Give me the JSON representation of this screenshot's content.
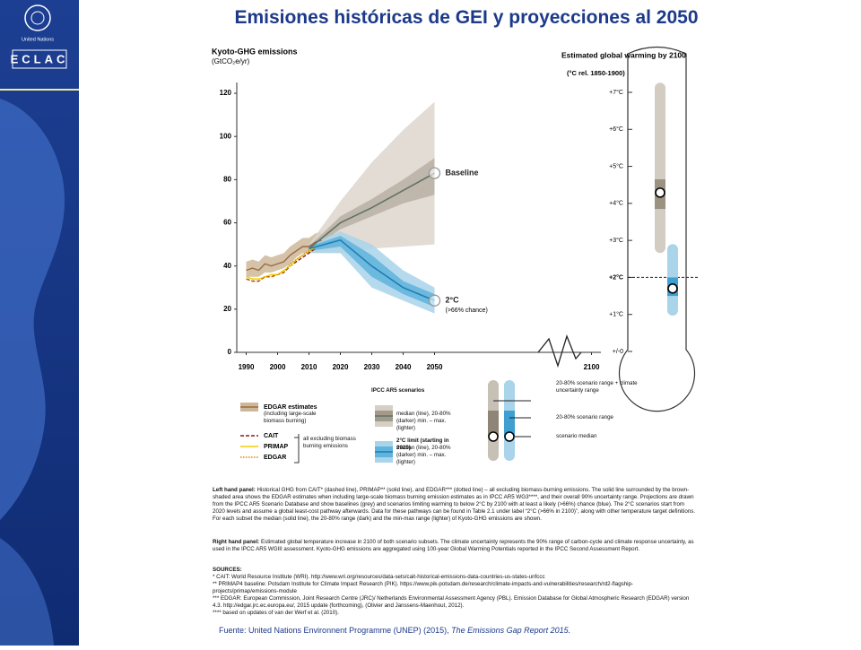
{
  "sidebar": {
    "org": "United Nations",
    "logo": "ECLAC"
  },
  "title": "Emisiones históricas de GEI y proyecciones al 2050",
  "chart_data": [
    {
      "type": "line",
      "title": "Kyoto-GHG emissions",
      "subtitle": "(GtCO₂e/yr)",
      "xlim": [
        1987,
        2103
      ],
      "xticks": [
        1990,
        2000,
        2010,
        2020,
        2030,
        2040,
        2050,
        2100
      ],
      "ylim": [
        0,
        125
      ],
      "yticks": [
        0,
        20,
        40,
        60,
        80,
        100,
        120
      ],
      "bands": [
        {
          "color": "#cdb79a",
          "x": [
            1990,
            1992,
            1994,
            1996,
            1998,
            2000,
            2002,
            2004,
            2006,
            2008,
            2010,
            2012,
            2014
          ],
          "low": [
            35,
            35,
            35,
            37,
            37,
            38,
            39,
            41,
            44,
            46,
            46,
            48,
            49
          ],
          "high": [
            42,
            43,
            42,
            45,
            44,
            45,
            46,
            49,
            51,
            53,
            53,
            55,
            56
          ]
        },
        {
          "color": "#ddd6cc",
          "x": [
            2010,
            2020,
            2030,
            2040,
            2050
          ],
          "low": [
            46,
            46,
            48,
            49,
            50
          ],
          "high": [
            50,
            70,
            88,
            103,
            116
          ]
        },
        {
          "color": "#b9b0a3",
          "x": [
            2010,
            2020,
            2030,
            2040,
            2050
          ],
          "low": [
            47,
            57,
            63,
            69,
            73
          ],
          "high": [
            49,
            63,
            71,
            80,
            90
          ]
        },
        {
          "color": "#a9d4ea",
          "x": [
            2010,
            2020,
            2030,
            2040,
            2050
          ],
          "low": [
            46,
            46,
            30,
            24,
            18
          ],
          "high": [
            50,
            56,
            50,
            38,
            30
          ]
        },
        {
          "color": "#5fb3dc",
          "x": [
            2010,
            2020,
            2030,
            2040,
            2050
          ],
          "low": [
            47,
            49,
            35,
            27,
            21
          ],
          "high": [
            49,
            54,
            45,
            33,
            27
          ]
        }
      ],
      "series": [
        {
          "name": "EDGAR estimates",
          "color": "#9c6b3f",
          "style": "solid",
          "x": [
            1990,
            1992,
            1994,
            1996,
            1998,
            2000,
            2002,
            2004,
            2006,
            2008,
            2010,
            2012,
            2014
          ],
          "values": [
            38,
            39,
            38,
            41,
            40,
            41,
            42,
            45,
            47,
            49,
            49,
            51,
            52
          ]
        },
        {
          "name": "CAIT",
          "color": "#8b1a1a",
          "style": "dashed",
          "x": [
            1990,
            1992,
            1994,
            1996,
            1998,
            2000,
            2002,
            2004,
            2006,
            2008,
            2010,
            2012
          ],
          "values": [
            34,
            33,
            33,
            35,
            35,
            36,
            37,
            40,
            42,
            44,
            46,
            48
          ]
        },
        {
          "name": "PRIMAP",
          "color": "#f0d000",
          "style": "solid",
          "x": [
            1990,
            1992,
            1994,
            1996,
            1998,
            2000,
            2002,
            2004,
            2006,
            2008,
            2010,
            2012
          ],
          "values": [
            35,
            34,
            34,
            35,
            36,
            36,
            38,
            40,
            43,
            45,
            47,
            49
          ]
        },
        {
          "name": "EDGAR",
          "color": "#d98a00",
          "style": "dotted",
          "x": [
            1990,
            1992,
            1994,
            1996,
            1998,
            2000,
            2002,
            2004,
            2006,
            2008,
            2010,
            2012
          ],
          "values": [
            34,
            33,
            33,
            35,
            35,
            36,
            37,
            41,
            43,
            45,
            47,
            48
          ]
        },
        {
          "name": "Baseline",
          "color": "#5f7366",
          "style": "solid",
          "x": [
            2010,
            2020,
            2030,
            2040,
            2050
          ],
          "values": [
            48,
            60,
            67,
            75,
            83
          ]
        },
        {
          "name": "2°C",
          "color": "#1f7fb0",
          "style": "solid",
          "x": [
            2010,
            2020,
            2030,
            2040,
            2050
          ],
          "values": [
            48,
            52,
            40,
            30,
            24
          ]
        }
      ],
      "annotation": "(>66% chance)"
    },
    {
      "type": "range",
      "title": "Estimated global warming by 2100",
      "subtitle": "(°C rel. 1850-1900)",
      "ylim": [
        0,
        7
      ],
      "yticks": [
        {
          "value": 7,
          "label": "+7°C"
        },
        {
          "value": 6,
          "label": "+6°C"
        },
        {
          "value": 5,
          "label": "+5°C"
        },
        {
          "value": 4,
          "label": "+4°C"
        },
        {
          "value": 3,
          "label": "+3°C"
        },
        {
          "value": 2,
          "label": "+2°C"
        },
        {
          "value": 1,
          "label": "+1°C"
        },
        {
          "value": 0,
          "label": "+/-0"
        }
      ],
      "reference_line": 2,
      "ranges": [
        {
          "outer_color": "#d3ccc3",
          "inner_color": "#9c9282",
          "outer": [
            2.66,
            7.26
          ],
          "inner": [
            3.85,
            4.65
          ],
          "median": 4.29
        },
        {
          "outer_color": "#a9d4ea",
          "inner_color": "#3f9fd0",
          "outer": [
            0.97,
            2.9
          ],
          "inner": [
            1.5,
            2.0
          ],
          "median": 1.7
        }
      ]
    }
  ],
  "legend": {
    "edgar_note": "(including large-scale biomass burning)",
    "excluding_note": "all excluding biomass burning emissions",
    "ipcc_title": "IPCC AR5 scenarios",
    "baseline_note": "median (line), 20-80% (darker) min. – max. (lighter)",
    "limit_title": "2°C limit (starting in 2020)",
    "limit_note": "median (line), 20-80% (darker) min. – max. (lighter)",
    "range_items": [
      "20-80% scenario range + climate uncertainty range",
      "20-80% scenario range",
      "scenario median"
    ]
  },
  "notes": {
    "left_head": "Left hand panel:",
    "left": "Historical GHG from CAIT* (dashed line), PRIMAP** (solid line), and EDGAR*** (dotted line) – all excluding biomass-burning emissions. The solid line surrounded by the brown-shaded area shows the EDGAR estimates when including large-scale biomass burning emission estimates as in IPCC AR5 WG3****, and their overall 90% uncertainty range. Projections are drawn from the IPCC AR5 Scenario Database and show baselines (grey) and scenarios limiting warming to below 2°C by 2100 with at least a likely (>66%) chance (blue). The 2°C scenarios start from 2020 levels and assume a global least-cost pathway afterwards. Data for these pathways can be found in Table 2.1 under label “2°C (>66% in 2100)”, along with other temperature target definitions. For each subset the median (solid line), the 20-80% range (dark) and the min-max range (lighter) of Kyoto-GHG emissions are shown.",
    "right_head": "Right hand panel:",
    "right": "Estimated global temperature increase in 2100 of both scenario subsets. The climate uncertainty represents the 90% range of carbon-cycle and climate response uncertainty, as used in the IPCC AR5 WGIII assessment. Kyoto-GHG emissions are aggregated using 100-year Global Warming Potentials reported in the IPCC Second Assessment Report.",
    "sources_head": "SOURCES:",
    "sources": [
      "* CAIT: World Resource Institute (WRI). http://www.wri.org/resources/data-sets/cait-historical-emissions-data-countries-us-states-unfccc",
      "** PRIMAP4 baseline: Potsdam Institute for Climate Impact Research (PIK). https://www.pik-potsdam.de/research/climate-impacts-and-vulnerabilities/research/rd2-flagship-projects/primap/emissions-module",
      "*** EDGAR: European Commission, Joint Research Centre (JRC)/ Netherlands Environmental Assessment Agency (PBL). Emission Database for Global Atmospheric Research (EDGAR) version 4.3. http://edgar.jrc.ec.europa.eu/, 2015 update (forthcoming), (Olivier and Janssens-Maenhout, 2012).",
      "**** based on updates of van der Werf et al. (2010)."
    ]
  },
  "footer": {
    "prefix": "Fuente: United Nations Environnent Programme (UNEP) (2015), ",
    "work": "The Emissions Gap Report 2015."
  }
}
